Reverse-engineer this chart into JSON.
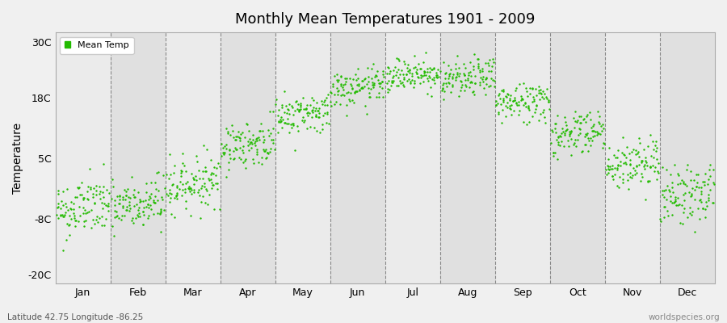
{
  "title": "Monthly Mean Temperatures 1901 - 2009",
  "ylabel": "Temperature",
  "xlabel_labels": [
    "Jan",
    "Feb",
    "Mar",
    "Apr",
    "May",
    "Jun",
    "Jul",
    "Aug",
    "Sep",
    "Oct",
    "Nov",
    "Dec"
  ],
  "yticks": [
    -20,
    -8,
    5,
    18,
    30
  ],
  "ytick_labels": [
    "-20C",
    "-8C",
    "5C",
    "18C",
    "30C"
  ],
  "ylim": [
    -22,
    32
  ],
  "dot_color": "#22BB00",
  "plot_bg_color": "#EBEBEB",
  "plot_bg_alt_color": "#E0E0E0",
  "fig_bg_color": "#F0F0F0",
  "grid_color": "#888888",
  "legend_label": "Mean Temp",
  "bottom_left_text": "Latitude 42.75 Longitude -86.25",
  "bottom_right_text": "worldspecies.org",
  "monthly_means": [
    -6.5,
    -6.0,
    -1.0,
    7.5,
    14.0,
    19.5,
    22.5,
    21.5,
    16.5,
    10.0,
    3.0,
    -3.5
  ],
  "monthly_stds": [
    3.2,
    3.0,
    2.8,
    2.5,
    2.2,
    2.0,
    1.8,
    2.0,
    2.2,
    2.5,
    2.8,
    3.2
  ],
  "monthly_trends": [
    0.015,
    0.015,
    0.012,
    0.01,
    0.01,
    0.01,
    0.01,
    0.01,
    0.01,
    0.01,
    0.012,
    0.014
  ],
  "n_years": 109,
  "seed": 42
}
